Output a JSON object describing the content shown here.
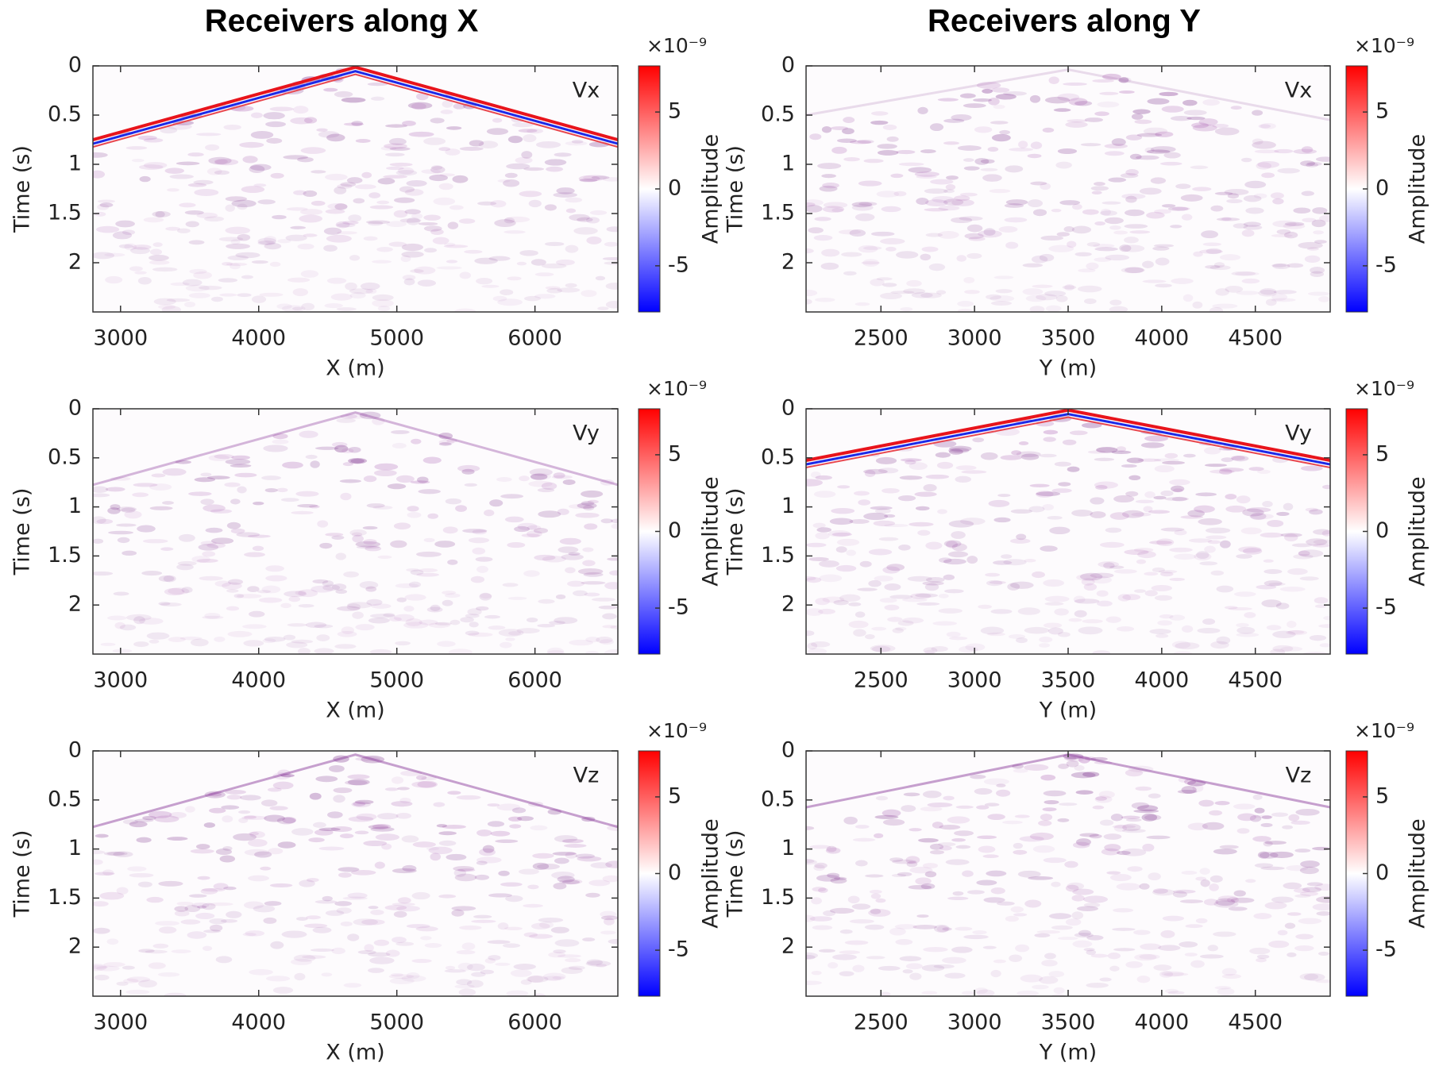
{
  "column_titles": [
    "Receivers along X",
    "Receivers along Y"
  ],
  "chart_data": [
    {
      "type": "heatmap",
      "component": "Vx",
      "xlabel": "X (m)",
      "ylabel": "Time (s)",
      "xlim": [
        2800,
        6600
      ],
      "xticks": [
        3000,
        4000,
        5000,
        6000
      ],
      "ylim": [
        0,
        2.5
      ],
      "yticks": [
        0,
        0.5,
        1,
        1.5,
        2
      ],
      "y_reversed": true,
      "colorbar": {
        "label": "Amplitude",
        "scale_label": "×10⁻⁹",
        "clim": [
          -8,
          8
        ],
        "cticks": [
          -5,
          0,
          5
        ],
        "colormap": [
          "#0000ff",
          "#ffffff",
          "#ff0000"
        ]
      }
    },
    {
      "type": "heatmap",
      "component": "Vx",
      "xlabel": "Y (m)",
      "ylabel": "Time (s)",
      "xlim": [
        2100,
        4900
      ],
      "xticks": [
        2500,
        3000,
        3500,
        4000,
        4500
      ],
      "ylim": [
        0,
        2.5
      ],
      "yticks": [
        0,
        0.5,
        1,
        1.5,
        2
      ],
      "y_reversed": true,
      "colorbar": {
        "label": "Amplitude",
        "scale_label": "×10⁻⁹",
        "clim": [
          -8,
          8
        ],
        "cticks": [
          -5,
          0,
          5
        ],
        "colormap": [
          "#0000ff",
          "#ffffff",
          "#ff0000"
        ]
      }
    },
    {
      "type": "heatmap",
      "component": "Vy",
      "xlabel": "X (m)",
      "ylabel": "Time (s)",
      "xlim": [
        2800,
        6600
      ],
      "xticks": [
        3000,
        4000,
        5000,
        6000
      ],
      "ylim": [
        0,
        2.5
      ],
      "yticks": [
        0,
        0.5,
        1,
        1.5,
        2
      ],
      "y_reversed": true,
      "colorbar": {
        "label": "Amplitude",
        "scale_label": "×10⁻⁹",
        "clim": [
          -8,
          8
        ],
        "cticks": [
          -5,
          0,
          5
        ],
        "colormap": [
          "#0000ff",
          "#ffffff",
          "#ff0000"
        ]
      }
    },
    {
      "type": "heatmap",
      "component": "Vy",
      "xlabel": "Y (m)",
      "ylabel": "Time (s)",
      "xlim": [
        2100,
        4900
      ],
      "xticks": [
        2500,
        3000,
        3500,
        4000,
        4500
      ],
      "ylim": [
        0,
        2.5
      ],
      "yticks": [
        0,
        0.5,
        1,
        1.5,
        2
      ],
      "y_reversed": true,
      "colorbar": {
        "label": "Amplitude",
        "scale_label": "×10⁻⁹",
        "clim": [
          -8,
          8
        ],
        "cticks": [
          -5,
          0,
          5
        ],
        "colormap": [
          "#0000ff",
          "#ffffff",
          "#ff0000"
        ]
      }
    },
    {
      "type": "heatmap",
      "component": "Vz",
      "xlabel": "X (m)",
      "ylabel": "Time (s)",
      "xlim": [
        2800,
        6600
      ],
      "xticks": [
        3000,
        4000,
        5000,
        6000
      ],
      "ylim": [
        0,
        2.5
      ],
      "yticks": [
        0,
        0.5,
        1,
        1.5,
        2
      ],
      "y_reversed": true,
      "colorbar": {
        "label": "Amplitude",
        "scale_label": "×10⁻⁹",
        "clim": [
          -8,
          8
        ],
        "cticks": [
          -5,
          0,
          5
        ],
        "colormap": [
          "#0000ff",
          "#ffffff",
          "#ff0000"
        ]
      }
    },
    {
      "type": "heatmap",
      "component": "Vz",
      "xlabel": "Y (m)",
      "ylabel": "Time (s)",
      "xlim": [
        2100,
        4900
      ],
      "xticks": [
        2500,
        3000,
        3500,
        4000,
        4500
      ],
      "ylim": [
        0,
        2.5
      ],
      "yticks": [
        0,
        0.5,
        1,
        1.5,
        2
      ],
      "y_reversed": true,
      "colorbar": {
        "label": "Amplitude",
        "scale_label": "×10⁻⁹",
        "clim": [
          -8,
          8
        ],
        "cticks": [
          -5,
          0,
          5
        ],
        "colormap": [
          "#0000ff",
          "#ffffff",
          "#ff0000"
        ]
      }
    }
  ]
}
